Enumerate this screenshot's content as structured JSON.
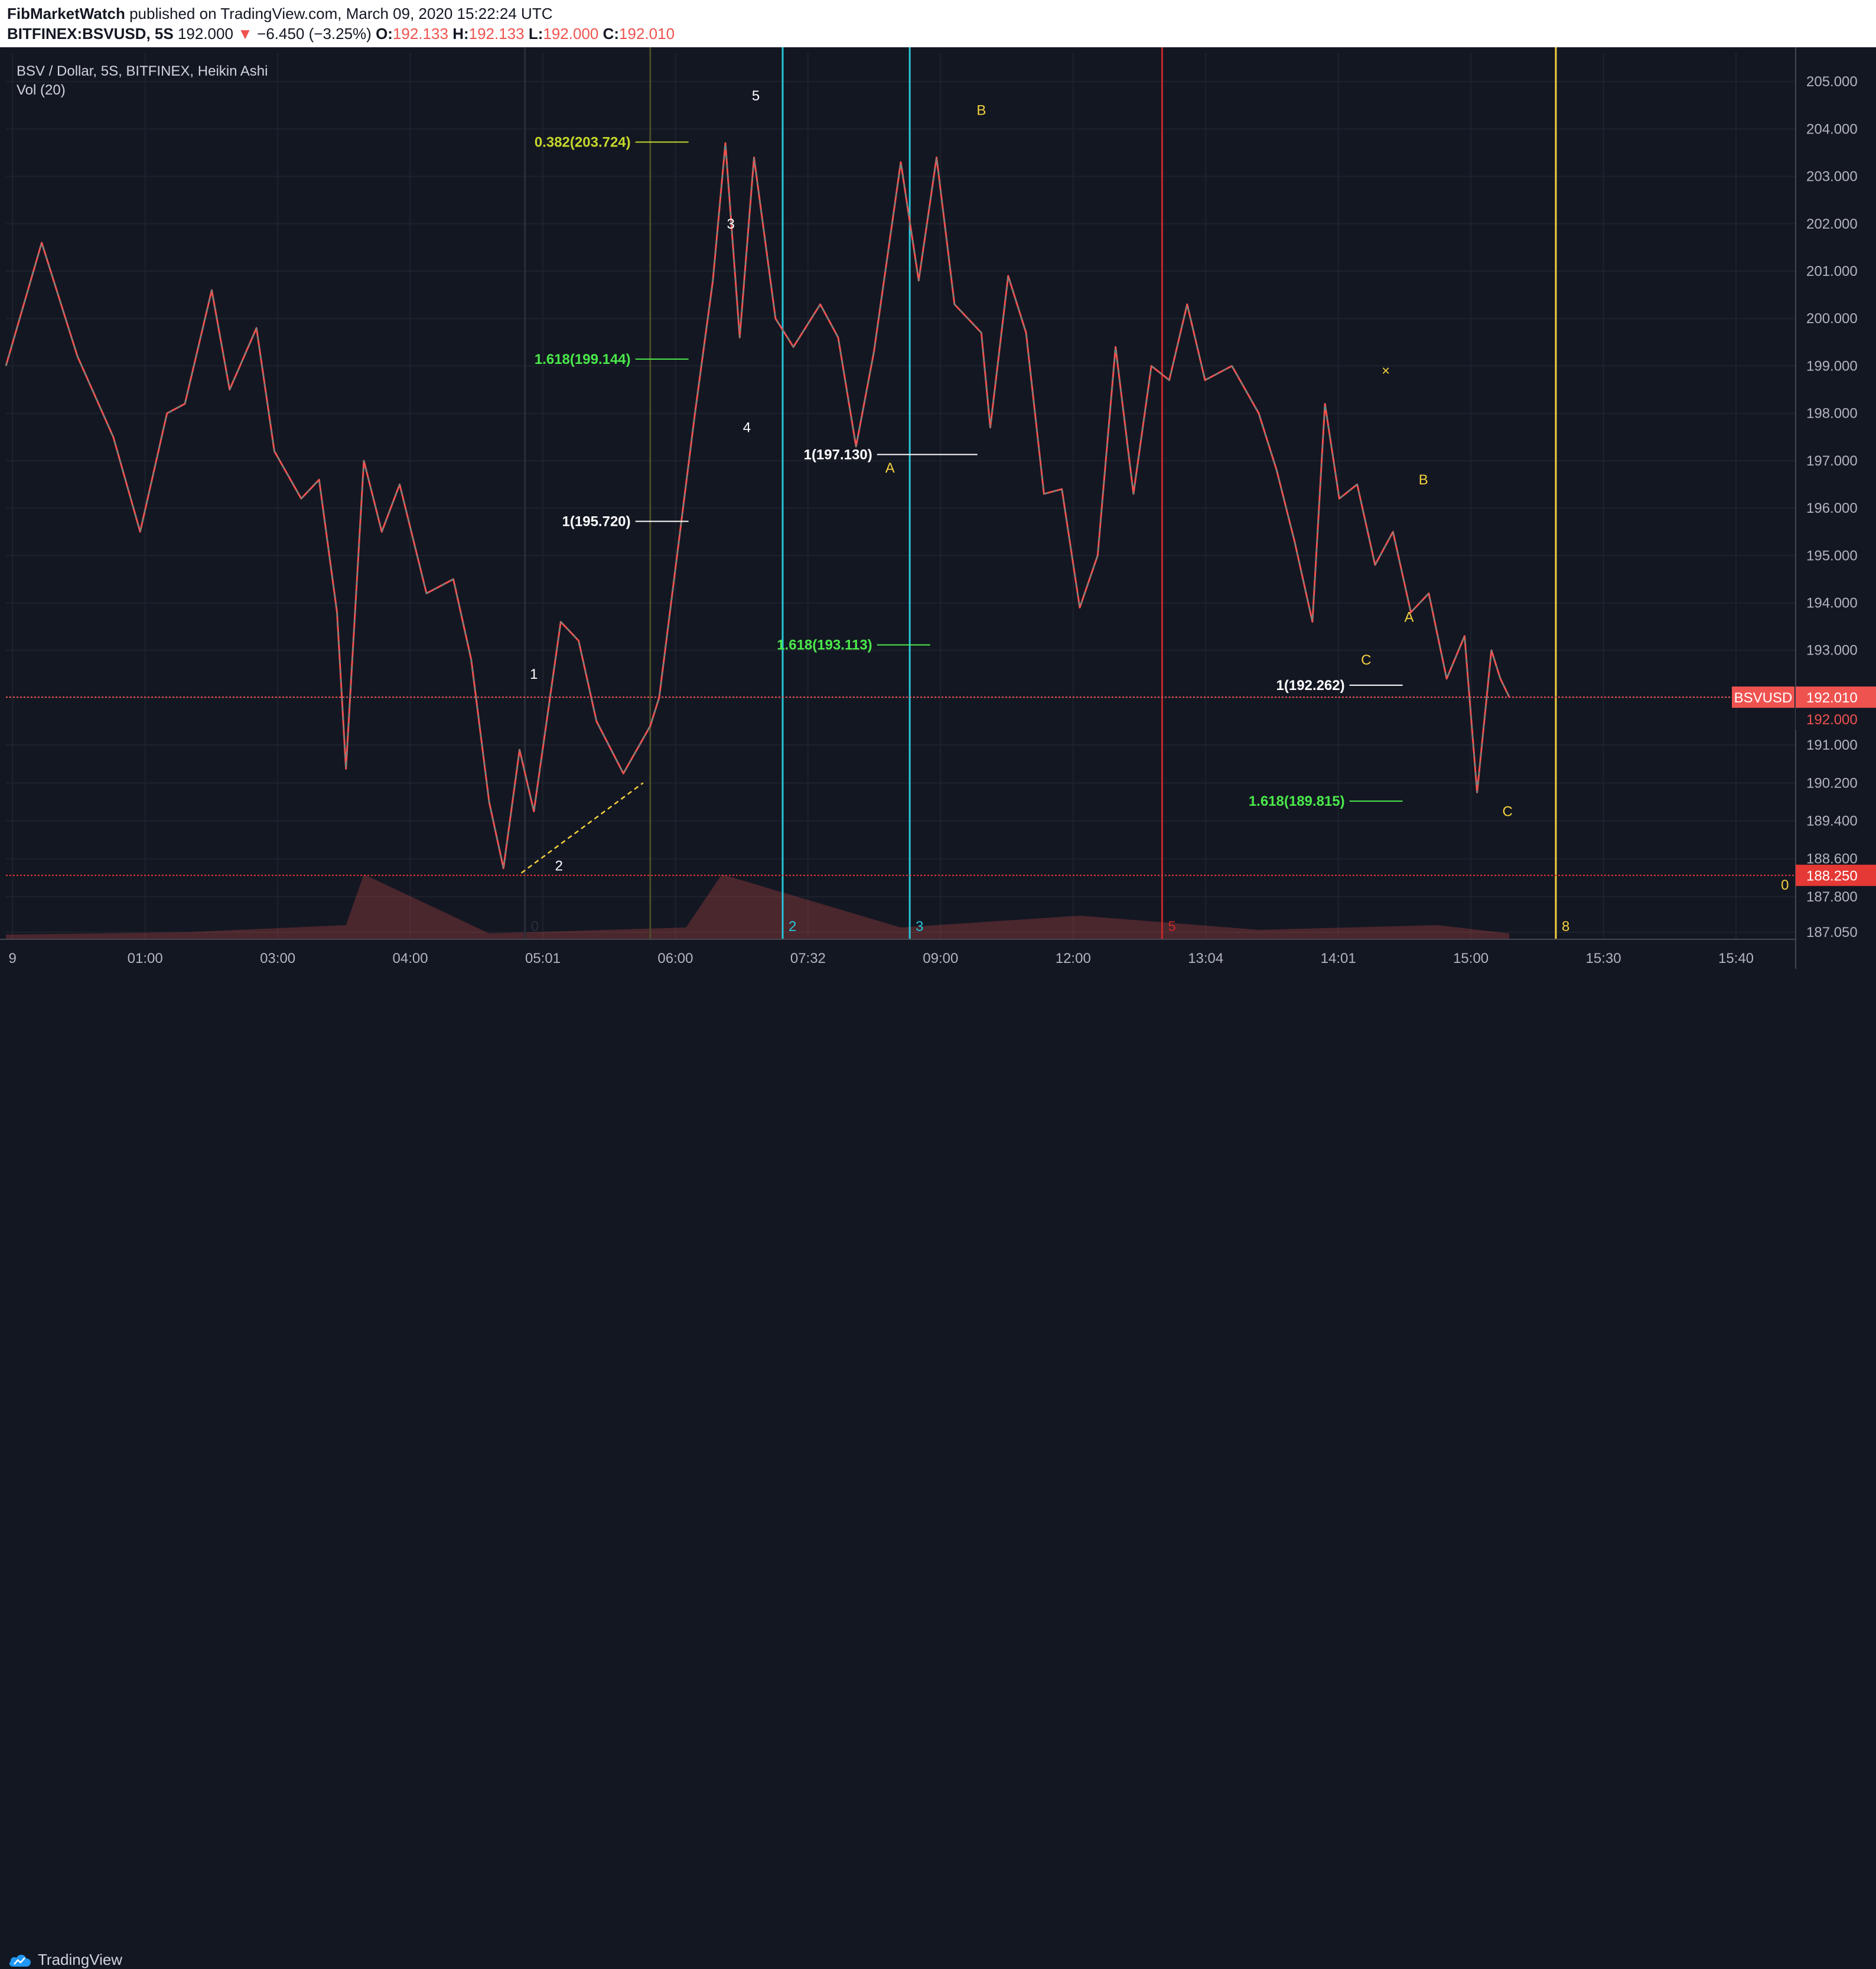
{
  "header": {
    "publisher": "FibMarketWatch",
    "published_text": "published on TradingView.com, March 09, 2020 15:22:24 UTC",
    "symbol": "BITFINEX:BSVUSD, 5S",
    "last": "192.000",
    "change_arrow": "▼",
    "change": "−6.450 (−3.25%)",
    "o_label": "O:",
    "o": "192.133",
    "h_label": "H:",
    "h": "192.133",
    "l_label": "L:",
    "l": "192.000",
    "c_label": "C:",
    "c": "192.010"
  },
  "legend": {
    "title": "BSV / Dollar, 5S, BITFINEX, Heikin Ashi",
    "indicator": "Vol (20)"
  },
  "footer": {
    "brand": "TradingView"
  },
  "chart_data": {
    "type": "candlestick",
    "symbol_badge": "BSVUSD",
    "last_price": "192.010",
    "bid_price": "192.000",
    "low_price": "188.250",
    "ylim": [
      186.9,
      205.6
    ],
    "yticks": [
      "205.000",
      "204.000",
      "203.000",
      "202.000",
      "201.000",
      "200.000",
      "199.000",
      "198.000",
      "197.000",
      "196.000",
      "195.000",
      "194.000",
      "193.000",
      "192.000",
      "191.000",
      "190.200",
      "189.400",
      "188.600",
      "187.800",
      "187.050"
    ],
    "xticks": [
      "9",
      "01:00",
      "03:00",
      "04:00",
      "05:01",
      "06:00",
      "07:32",
      "09:00",
      "12:00",
      "13:04",
      "14:01",
      "15:00",
      "15:30",
      "15:40"
    ],
    "price_path": [
      [
        0,
        199
      ],
      [
        0.02,
        201.6
      ],
      [
        0.04,
        199.2
      ],
      [
        0.06,
        197.5
      ],
      [
        0.075,
        195.5
      ],
      [
        0.09,
        198
      ],
      [
        0.1,
        198.2
      ],
      [
        0.115,
        200.6
      ],
      [
        0.125,
        198.5
      ],
      [
        0.14,
        199.8
      ],
      [
        0.15,
        197.2
      ],
      [
        0.165,
        196.2
      ],
      [
        0.175,
        196.6
      ],
      [
        0.185,
        193.8
      ],
      [
        0.19,
        190.5
      ],
      [
        0.2,
        197
      ],
      [
        0.21,
        195.5
      ],
      [
        0.22,
        196.5
      ],
      [
        0.235,
        194.2
      ],
      [
        0.25,
        194.5
      ],
      [
        0.26,
        192.8
      ],
      [
        0.27,
        189.8
      ],
      [
        0.278,
        188.4
      ],
      [
        0.287,
        190.9
      ],
      [
        0.295,
        189.6
      ],
      [
        0.31,
        193.6
      ],
      [
        0.32,
        193.2
      ],
      [
        0.33,
        191.5
      ],
      [
        0.345,
        190.4
      ],
      [
        0.36,
        191.4
      ],
      [
        0.365,
        192
      ],
      [
        0.375,
        195
      ],
      [
        0.385,
        198
      ],
      [
        0.395,
        200.8
      ],
      [
        0.402,
        203.7
      ],
      [
        0.41,
        199.6
      ],
      [
        0.418,
        203.4
      ],
      [
        0.43,
        200
      ],
      [
        0.44,
        199.4
      ],
      [
        0.455,
        200.3
      ],
      [
        0.465,
        199.6
      ],
      [
        0.475,
        197.3
      ],
      [
        0.485,
        199.3
      ],
      [
        0.5,
        203.3
      ],
      [
        0.51,
        200.8
      ],
      [
        0.52,
        203.4
      ],
      [
        0.53,
        200.3
      ],
      [
        0.545,
        199.7
      ],
      [
        0.55,
        197.7
      ],
      [
        0.56,
        200.9
      ],
      [
        0.57,
        199.7
      ],
      [
        0.58,
        196.3
      ],
      [
        0.59,
        196.4
      ],
      [
        0.6,
        193.9
      ],
      [
        0.61,
        195
      ],
      [
        0.62,
        199.4
      ],
      [
        0.63,
        196.3
      ],
      [
        0.64,
        199
      ],
      [
        0.65,
        198.7
      ],
      [
        0.66,
        200.3
      ],
      [
        0.67,
        198.7
      ],
      [
        0.685,
        199
      ],
      [
        0.7,
        198
      ],
      [
        0.71,
        196.8
      ],
      [
        0.72,
        195.3
      ],
      [
        0.73,
        193.6
      ],
      [
        0.737,
        198.2
      ],
      [
        0.745,
        196.2
      ],
      [
        0.755,
        196.5
      ],
      [
        0.765,
        194.8
      ],
      [
        0.775,
        195.5
      ],
      [
        0.785,
        193.8
      ],
      [
        0.795,
        194.2
      ],
      [
        0.805,
        192.4
      ],
      [
        0.815,
        193.3
      ],
      [
        0.822,
        190
      ],
      [
        0.83,
        193
      ],
      [
        0.835,
        192.4
      ],
      [
        0.84,
        192.01
      ]
    ],
    "volume_path": [
      [
        0,
        0.04
      ],
      [
        0.1,
        0.06
      ],
      [
        0.19,
        0.12
      ],
      [
        0.2,
        0.55
      ],
      [
        0.27,
        0.05
      ],
      [
        0.38,
        0.1
      ],
      [
        0.4,
        0.55
      ],
      [
        0.5,
        0.1
      ],
      [
        0.6,
        0.2
      ],
      [
        0.7,
        0.08
      ],
      [
        0.8,
        0.12
      ],
      [
        0.84,
        0.05
      ]
    ],
    "vlines": [
      {
        "x": 0.434,
        "color": "#26c6da",
        "label": "2"
      },
      {
        "x": 0.505,
        "color": "#26c6da",
        "label": "3"
      },
      {
        "x": 0.646,
        "color": "#c62828",
        "label": "5"
      },
      {
        "x": 0.866,
        "color": "#f4d03f",
        "label": "8"
      },
      {
        "x": 0.36,
        "color": "#4a4a2a",
        "label": ""
      },
      {
        "x": 0.29,
        "color": "#2a2e39",
        "label": "0"
      }
    ],
    "hlines": [
      {
        "price": 192.01,
        "color": "#ef5350"
      },
      {
        "price": 188.25,
        "color": "#e53935"
      }
    ],
    "fib_levels": [
      {
        "text": "0.382(203.724)",
        "price": 203.724,
        "color": "#c6d82a"
      },
      {
        "text": "1.618(199.144)",
        "price": 199.144,
        "color": "#4be84b"
      },
      {
        "text": "1(197.130)",
        "price": 197.13,
        "color": "#ffffff"
      },
      {
        "text": "1(195.720)",
        "price": 195.72,
        "color": "#ffffff"
      },
      {
        "text": "1.618(193.113)",
        "price": 193.113,
        "color": "#4be84b"
      },
      {
        "text": "1(192.262)",
        "price": 192.262,
        "color": "#ffffff"
      },
      {
        "text": "1.618(189.815)",
        "price": 189.815,
        "color": "#4be84b"
      }
    ],
    "wave_labels": [
      {
        "text": "1",
        "x": 0.295,
        "price": 192.4,
        "color": "#ffffff"
      },
      {
        "text": "2",
        "x": 0.309,
        "price": 188.35,
        "color": "#ffffff"
      },
      {
        "text": "3",
        "x": 0.405,
        "price": 201.9,
        "color": "#ffffff"
      },
      {
        "text": "4",
        "x": 0.414,
        "price": 197.6,
        "color": "#ffffff"
      },
      {
        "text": "5",
        "x": 0.419,
        "price": 204.6,
        "color": "#ffffff"
      },
      {
        "text": "A",
        "x": 0.494,
        "price": 196.75,
        "color": "#f4d03f"
      },
      {
        "text": "B",
        "x": 0.545,
        "price": 204.3,
        "color": "#f4d03f"
      },
      {
        "text": "C",
        "x": 0.76,
        "price": 192.7,
        "color": "#f4d03f"
      },
      {
        "text": "B",
        "x": 0.792,
        "price": 196.5,
        "color": "#f4d03f"
      },
      {
        "text": "A",
        "x": 0.784,
        "price": 193.6,
        "color": "#f4d03f"
      },
      {
        "text": "C",
        "x": 0.839,
        "price": 189.5,
        "color": "#f4d03f"
      },
      {
        "text": "×",
        "x": 0.771,
        "price": 198.8,
        "color": "#f4d03f"
      },
      {
        "text": "0",
        "x": 0.994,
        "price": 187.95,
        "color": "#f4d03f"
      }
    ],
    "trendline": {
      "x1": 0.288,
      "p1": 188.3,
      "x2": 0.356,
      "p2": 190.2,
      "color": "#f4d03f"
    }
  }
}
